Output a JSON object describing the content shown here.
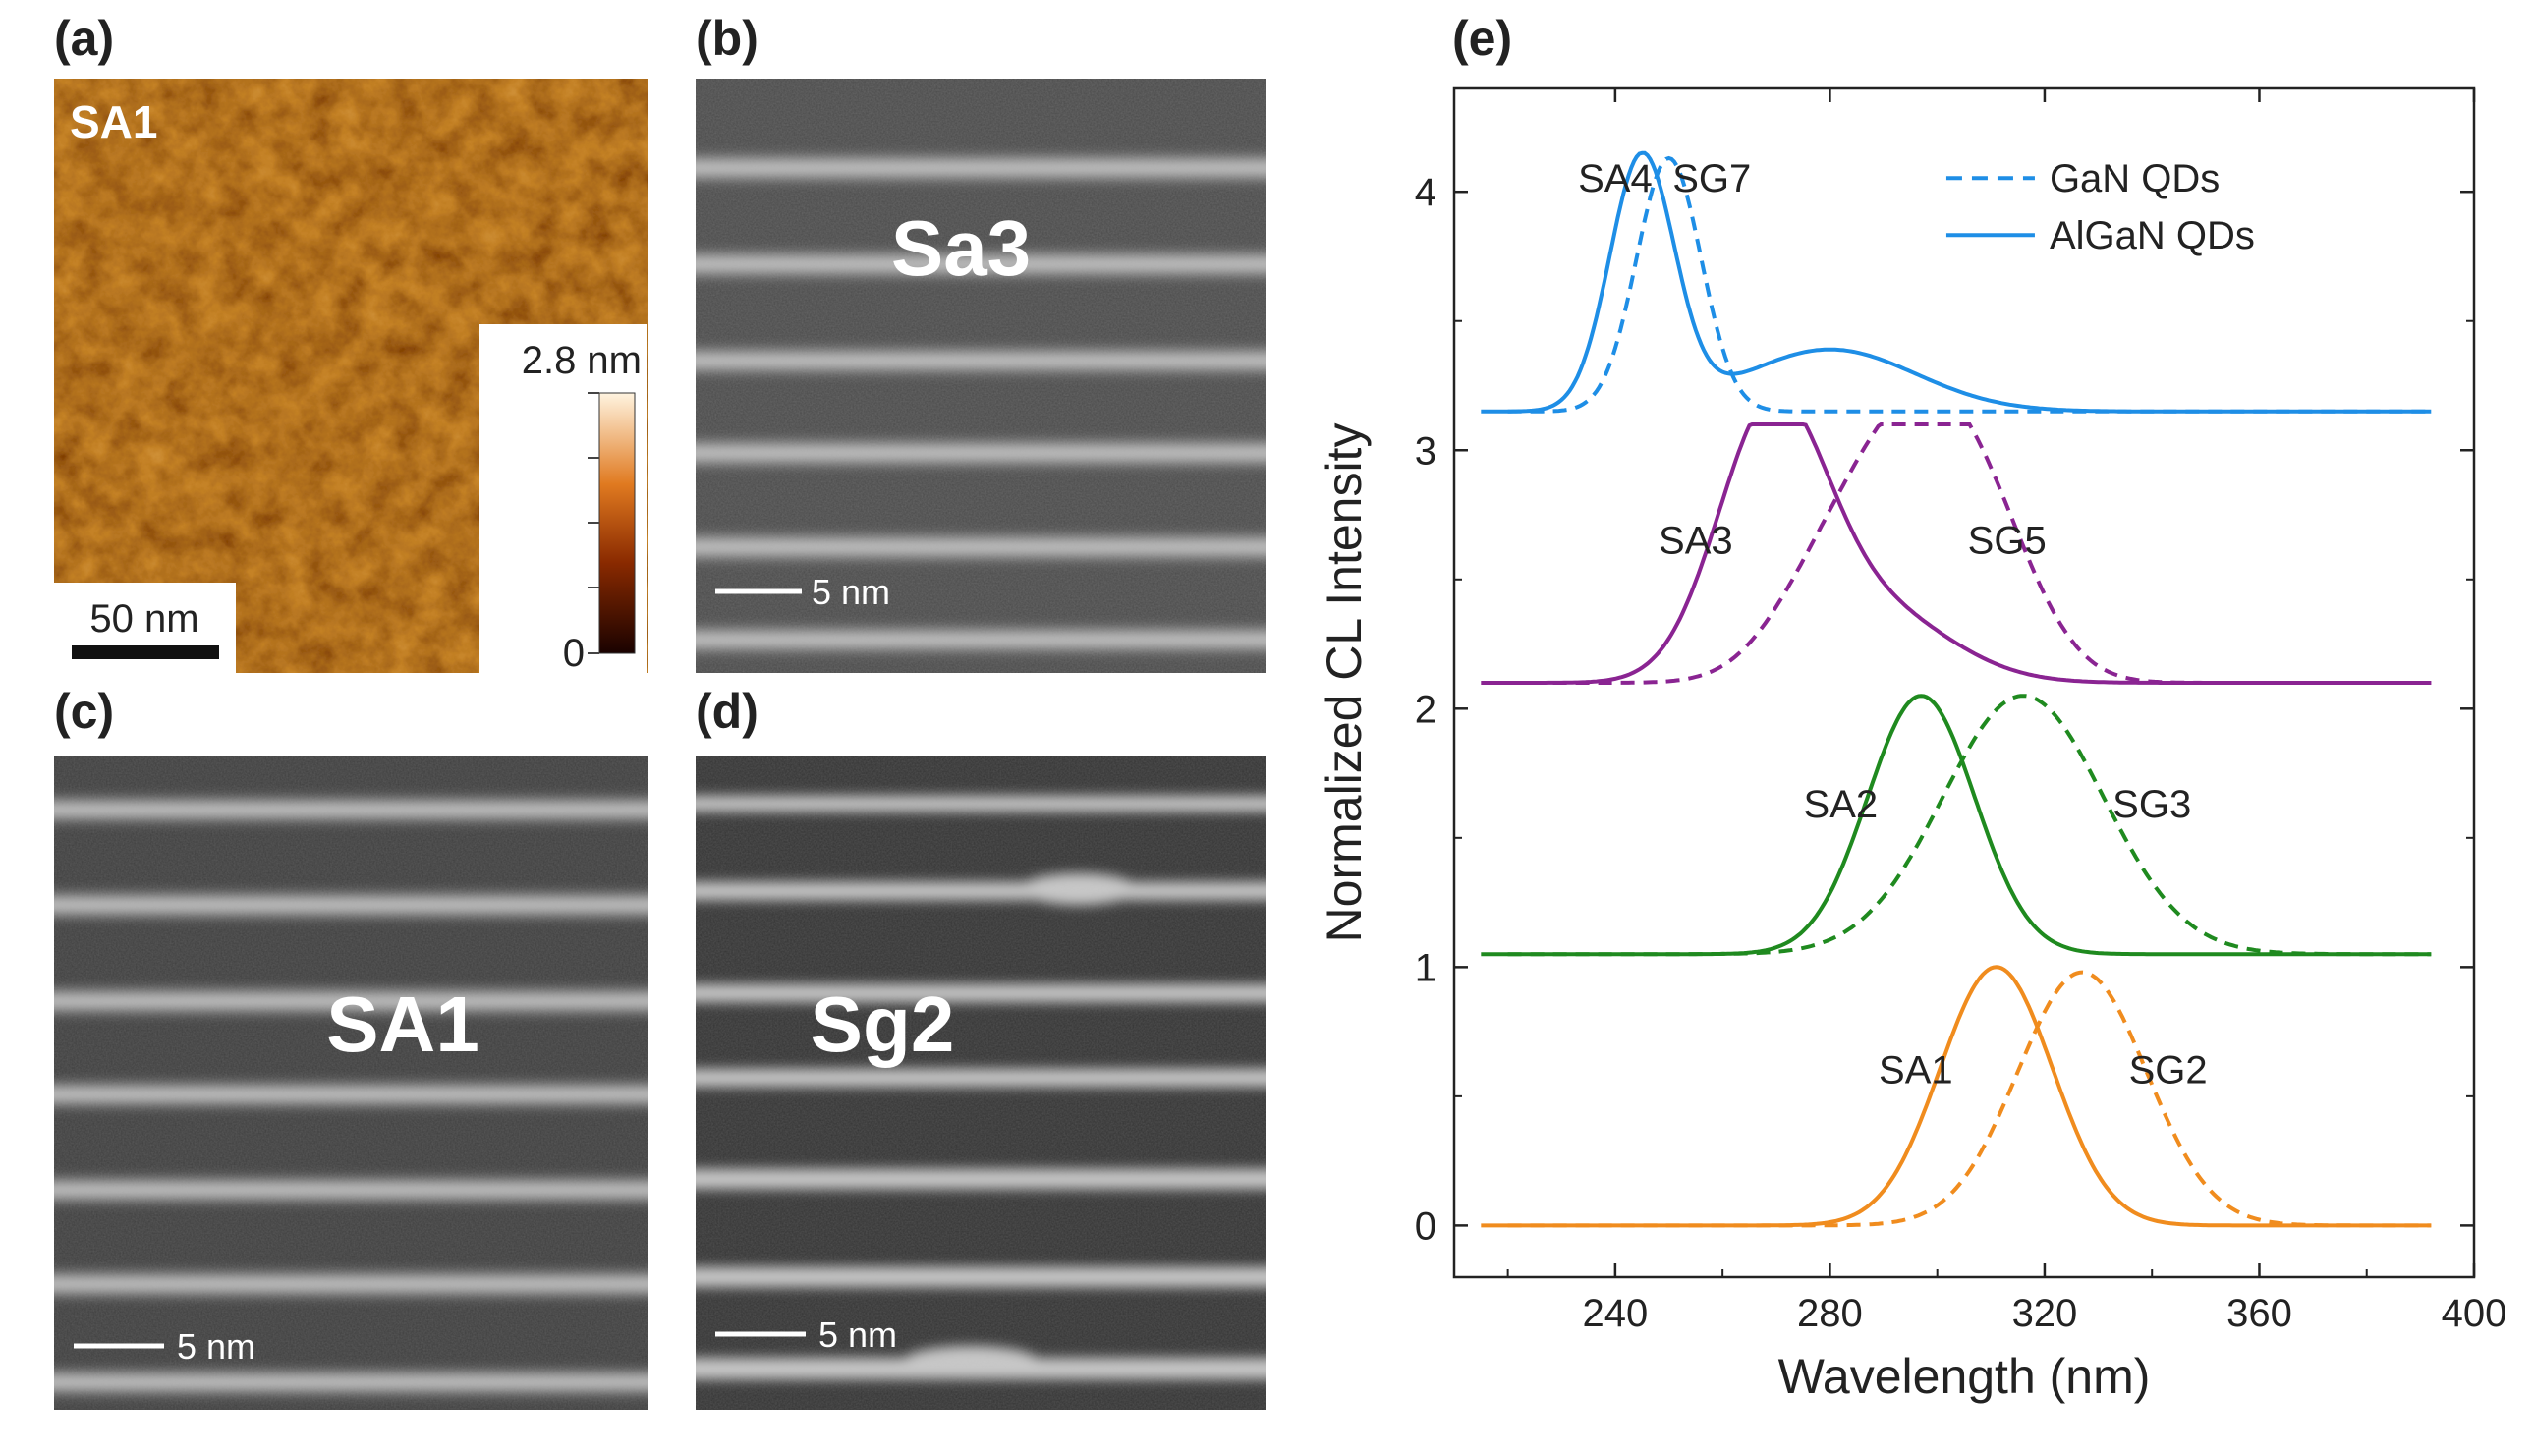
{
  "panels": {
    "a": {
      "letter": "(a)",
      "label": "SA1",
      "colorbar": {
        "max_label": "2.8 nm",
        "min_label": "0"
      },
      "scalebar": "50 nm"
    },
    "b": {
      "letter": "(b)",
      "label": "Sa3",
      "scalebar": "5 nm"
    },
    "c": {
      "letter": "(c)",
      "label": "SA1",
      "scalebar": "5 nm"
    },
    "d": {
      "letter": "(d)",
      "label": "Sg2",
      "scalebar": "5 nm"
    },
    "e": {
      "letter": "(e)"
    }
  },
  "colors": {
    "afm_dark": "#2a0a00",
    "afm_mid": "#b85a10",
    "afm_light": "#f0c070",
    "stem_bg": "#3a3a3a",
    "stem_layer": "#cfcfcf",
    "sa4_sg7": "#1e8ee6",
    "sa3_sg5": "#8a2492",
    "sa2_sg3": "#1f8a1f",
    "sa1_sg2": "#f08c1e"
  },
  "chart_data": {
    "type": "line",
    "title": "",
    "xlabel": "Wavelength (nm)",
    "ylabel": "Normalized CL Intensity",
    "xlim": [
      210,
      400
    ],
    "ylim": [
      -0.2,
      4.4
    ],
    "xticks": [
      240,
      280,
      320,
      360,
      400
    ],
    "yticks": [
      0,
      1,
      2,
      3,
      4
    ],
    "legend": [
      {
        "label": "GaN QDs",
        "style": "dashed"
      },
      {
        "label": "AlGaN QDs",
        "style": "solid"
      }
    ],
    "series": [
      {
        "name": "SA1",
        "style": "solid",
        "color": "#f08c1e",
        "offset": 0,
        "peaks": [
          {
            "center": 311,
            "amp": 1.0,
            "width": 10.5
          }
        ]
      },
      {
        "name": "SG2",
        "style": "dashed",
        "color": "#f08c1e",
        "offset": 0,
        "peaks": [
          {
            "center": 327,
            "amp": 0.98,
            "width": 12
          }
        ]
      },
      {
        "name": "SA2",
        "style": "solid",
        "color": "#1f8a1f",
        "offset": 1.05,
        "peaks": [
          {
            "center": 297,
            "amp": 1.0,
            "width": 10
          }
        ]
      },
      {
        "name": "SG3",
        "style": "dashed",
        "color": "#1f8a1f",
        "offset": 1.05,
        "peaks": [
          {
            "center": 316,
            "amp": 1.0,
            "width": 15
          }
        ]
      },
      {
        "name": "SA3",
        "style": "solid",
        "color": "#8a2492",
        "offset": 2.1,
        "peaks": [
          {
            "center": 269,
            "amp": 1.0,
            "width": 10
          },
          {
            "center": 288,
            "amp": 0.28,
            "width": 14
          }
        ]
      },
      {
        "name": "SG5",
        "style": "dashed",
        "color": "#8a2492",
        "offset": 2.1,
        "peaks": [
          {
            "center": 296,
            "amp": 0.95,
            "width": 12
          },
          {
            "center": 278,
            "amp": 0.28,
            "width": 10
          },
          {
            "center": 310,
            "amp": 0.35,
            "width": 10
          }
        ]
      },
      {
        "name": "SA4",
        "style": "solid",
        "color": "#1e8ee6",
        "offset": 3.15,
        "peaks": [
          {
            "center": 245,
            "amp": 0.98,
            "width": 6
          },
          {
            "center": 280,
            "amp": 0.24,
            "width": 16
          }
        ]
      },
      {
        "name": "SG7",
        "style": "dashed",
        "color": "#1e8ee6",
        "offset": 3.15,
        "peaks": [
          {
            "center": 250,
            "amp": 0.98,
            "width": 6
          }
        ]
      }
    ],
    "annotations": [
      {
        "text": "SA4",
        "x": 240,
        "y": 4.0
      },
      {
        "text": "SG7",
        "x": 258,
        "y": 4.0
      },
      {
        "text": "SA3",
        "x": 255,
        "y": 2.6
      },
      {
        "text": "SG5",
        "x": 313,
        "y": 2.6
      },
      {
        "text": "SA2",
        "x": 282,
        "y": 1.58
      },
      {
        "text": "SG3",
        "x": 340,
        "y": 1.58
      },
      {
        "text": "SA1",
        "x": 296,
        "y": 0.55
      },
      {
        "text": "SG2",
        "x": 343,
        "y": 0.55
      }
    ]
  }
}
